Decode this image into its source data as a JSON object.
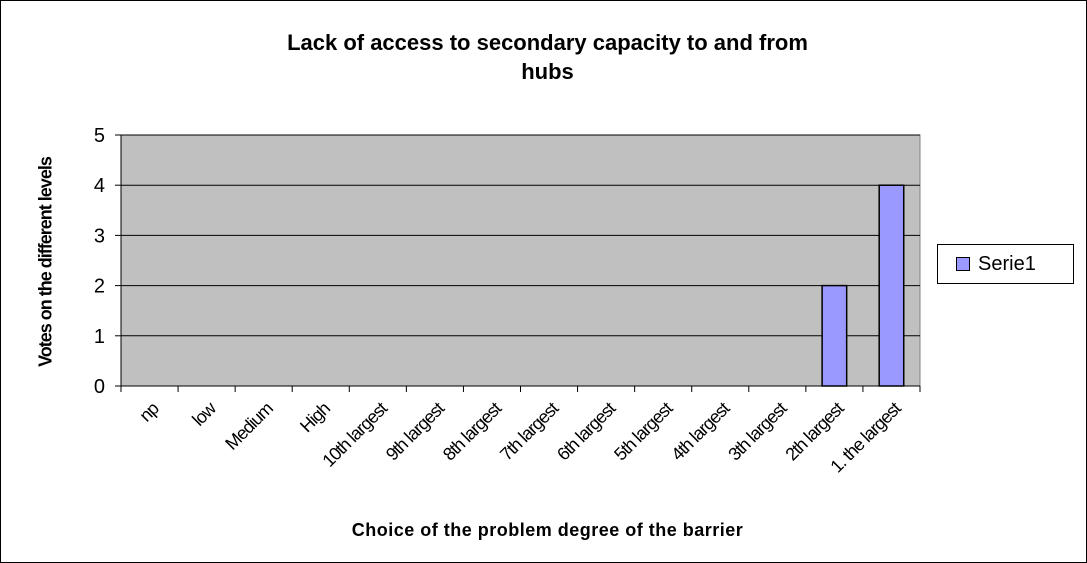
{
  "chart_data": {
    "type": "bar",
    "title_lines": [
      "Lack of access to secondary capacity to and from",
      "hubs"
    ],
    "xlabel": "Choice of the problem degree of the barrier",
    "ylabel": "Votes on the different levels",
    "categories": [
      "np",
      "low",
      "Medium",
      "High",
      "10th largest",
      "9th largest",
      "8th largest",
      "7th largest",
      "6th largest",
      "5th largest",
      "4th largest",
      "3th largest",
      "2th largest",
      "1. the largest"
    ],
    "series": [
      {
        "name": "Serie1",
        "values": [
          0,
          0,
          0,
          0,
          0,
          0,
          0,
          0,
          0,
          0,
          0,
          0,
          2,
          4
        ]
      }
    ],
    "ylim": [
      0,
      5
    ],
    "yticks": [
      0,
      1,
      2,
      3,
      4,
      5
    ],
    "grid": true,
    "legend": "right",
    "colors": {
      "plot_bg": "#c0c0c0",
      "bar": "#9999ff",
      "grid": "#000000"
    }
  }
}
